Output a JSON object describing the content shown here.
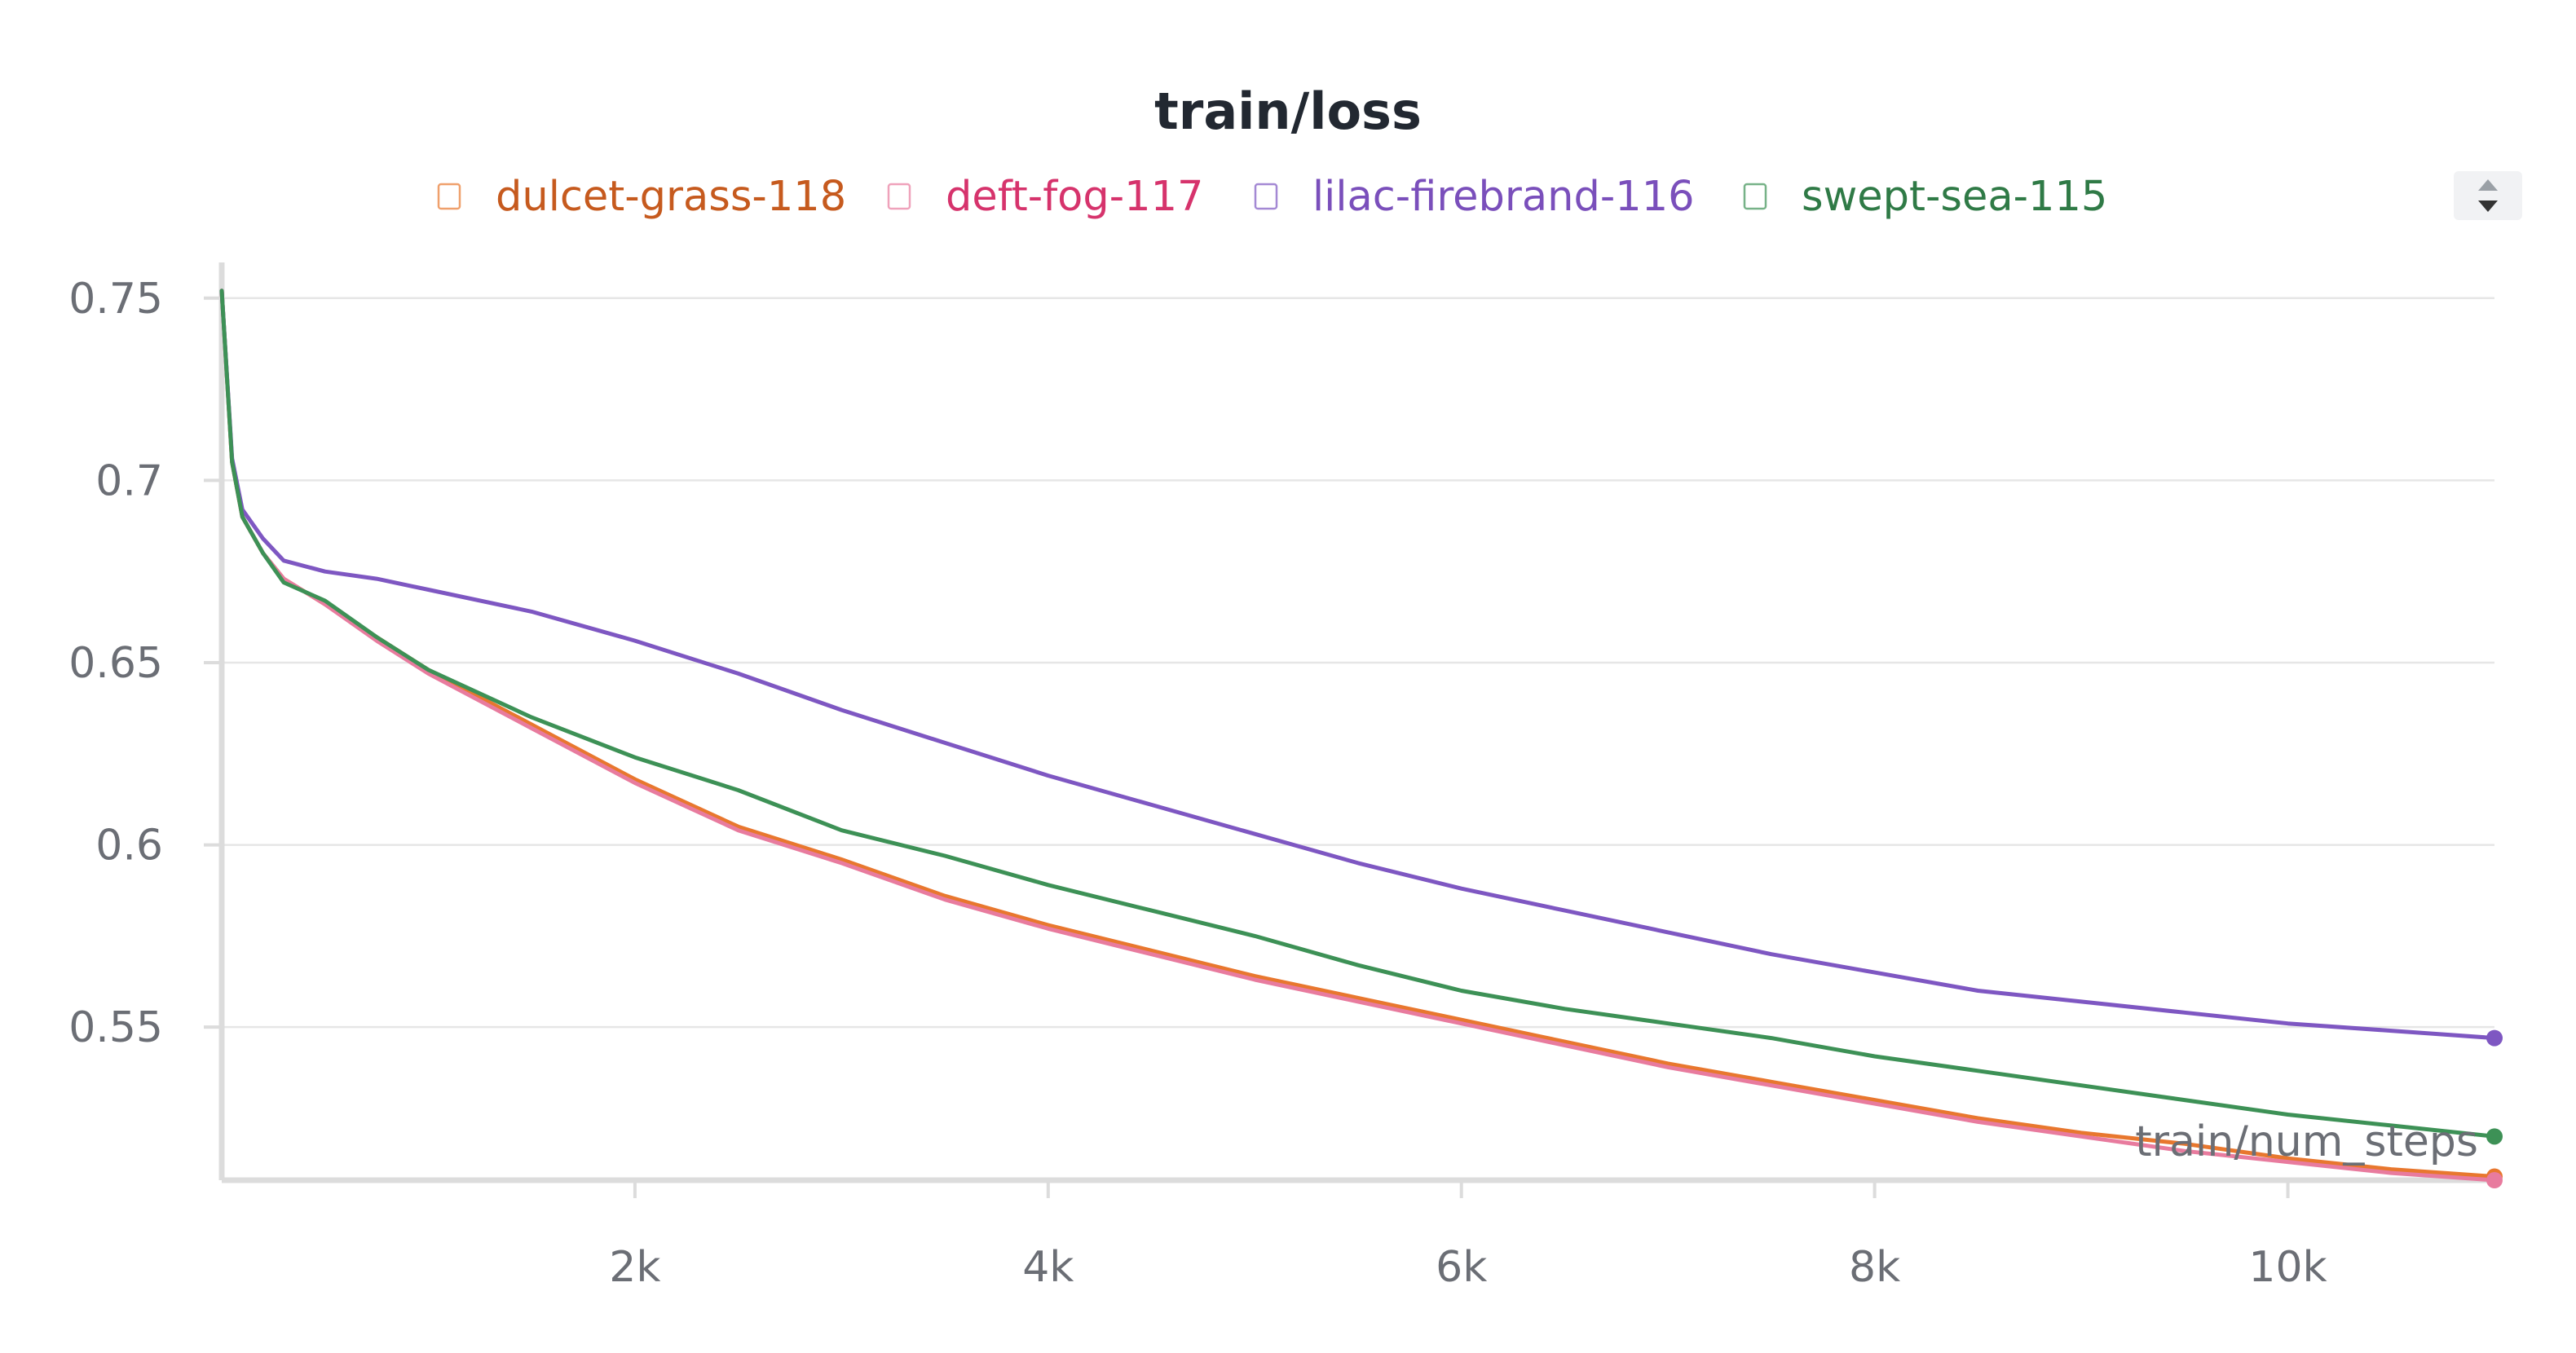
{
  "chart_data": {
    "type": "line",
    "title": "train/loss",
    "xlabel": "train/num_steps",
    "ylabel": "",
    "xlim": [
      0,
      11000
    ],
    "ylim": [
      0.508,
      0.758
    ],
    "x_ticks": [
      {
        "value": 2000,
        "label": "2k"
      },
      {
        "value": 4000,
        "label": "4k"
      },
      {
        "value": 6000,
        "label": "6k"
      },
      {
        "value": 8000,
        "label": "8k"
      },
      {
        "value": 10000,
        "label": "10k"
      }
    ],
    "y_ticks": [
      {
        "value": 0.55,
        "label": "0.55"
      },
      {
        "value": 0.6,
        "label": "0.6"
      },
      {
        "value": 0.65,
        "label": "0.65"
      },
      {
        "value": 0.7,
        "label": "0.7"
      },
      {
        "value": 0.75,
        "label": "0.75"
      }
    ],
    "grid": true,
    "legend_position": "top",
    "x": [
      0,
      50,
      100,
      200,
      300,
      500,
      750,
      1000,
      1500,
      2000,
      2500,
      3000,
      3500,
      4000,
      4500,
      5000,
      5500,
      6000,
      6500,
      7000,
      7500,
      8000,
      8500,
      9000,
      9500,
      10000,
      10500,
      11000
    ],
    "series": [
      {
        "name": "dulcet-grass-118",
        "color": "#e8772e",
        "values": [
          0.752,
          0.705,
          0.69,
          0.68,
          0.673,
          0.666,
          0.657,
          0.648,
          0.633,
          0.618,
          0.605,
          0.596,
          0.586,
          0.578,
          0.571,
          0.564,
          0.558,
          0.552,
          0.546,
          0.54,
          0.535,
          0.53,
          0.525,
          0.521,
          0.518,
          0.514,
          0.511,
          0.509
        ]
      },
      {
        "name": "deft-fog-117",
        "color": "#e87b9e",
        "values": [
          0.752,
          0.705,
          0.69,
          0.68,
          0.673,
          0.666,
          0.656,
          0.647,
          0.632,
          0.617,
          0.604,
          0.595,
          0.585,
          0.577,
          0.57,
          0.563,
          0.557,
          0.551,
          0.545,
          0.539,
          0.534,
          0.529,
          0.524,
          0.52,
          0.516,
          0.513,
          0.51,
          0.508
        ]
      },
      {
        "name": "lilac-firebrand-116",
        "color": "#7e57c2",
        "values": [
          0.752,
          0.706,
          0.692,
          0.684,
          0.678,
          0.675,
          0.673,
          0.67,
          0.664,
          0.656,
          0.647,
          0.637,
          0.628,
          0.619,
          0.611,
          0.603,
          0.595,
          0.588,
          0.582,
          0.576,
          0.57,
          0.565,
          0.56,
          0.557,
          0.554,
          0.551,
          0.549,
          0.547
        ]
      },
      {
        "name": "swept-sea-115",
        "color": "#3d9156",
        "values": [
          0.752,
          0.705,
          0.69,
          0.68,
          0.672,
          0.667,
          0.657,
          0.648,
          0.635,
          0.624,
          0.615,
          0.604,
          0.597,
          0.589,
          0.582,
          0.575,
          0.567,
          0.56,
          0.555,
          0.551,
          0.547,
          0.542,
          0.538,
          0.534,
          0.53,
          0.526,
          0.523,
          0.52
        ]
      }
    ],
    "legend_label_colors": [
      "#c65a1e",
      "#d6336c",
      "#7a4fbb",
      "#2f7a46"
    ]
  }
}
